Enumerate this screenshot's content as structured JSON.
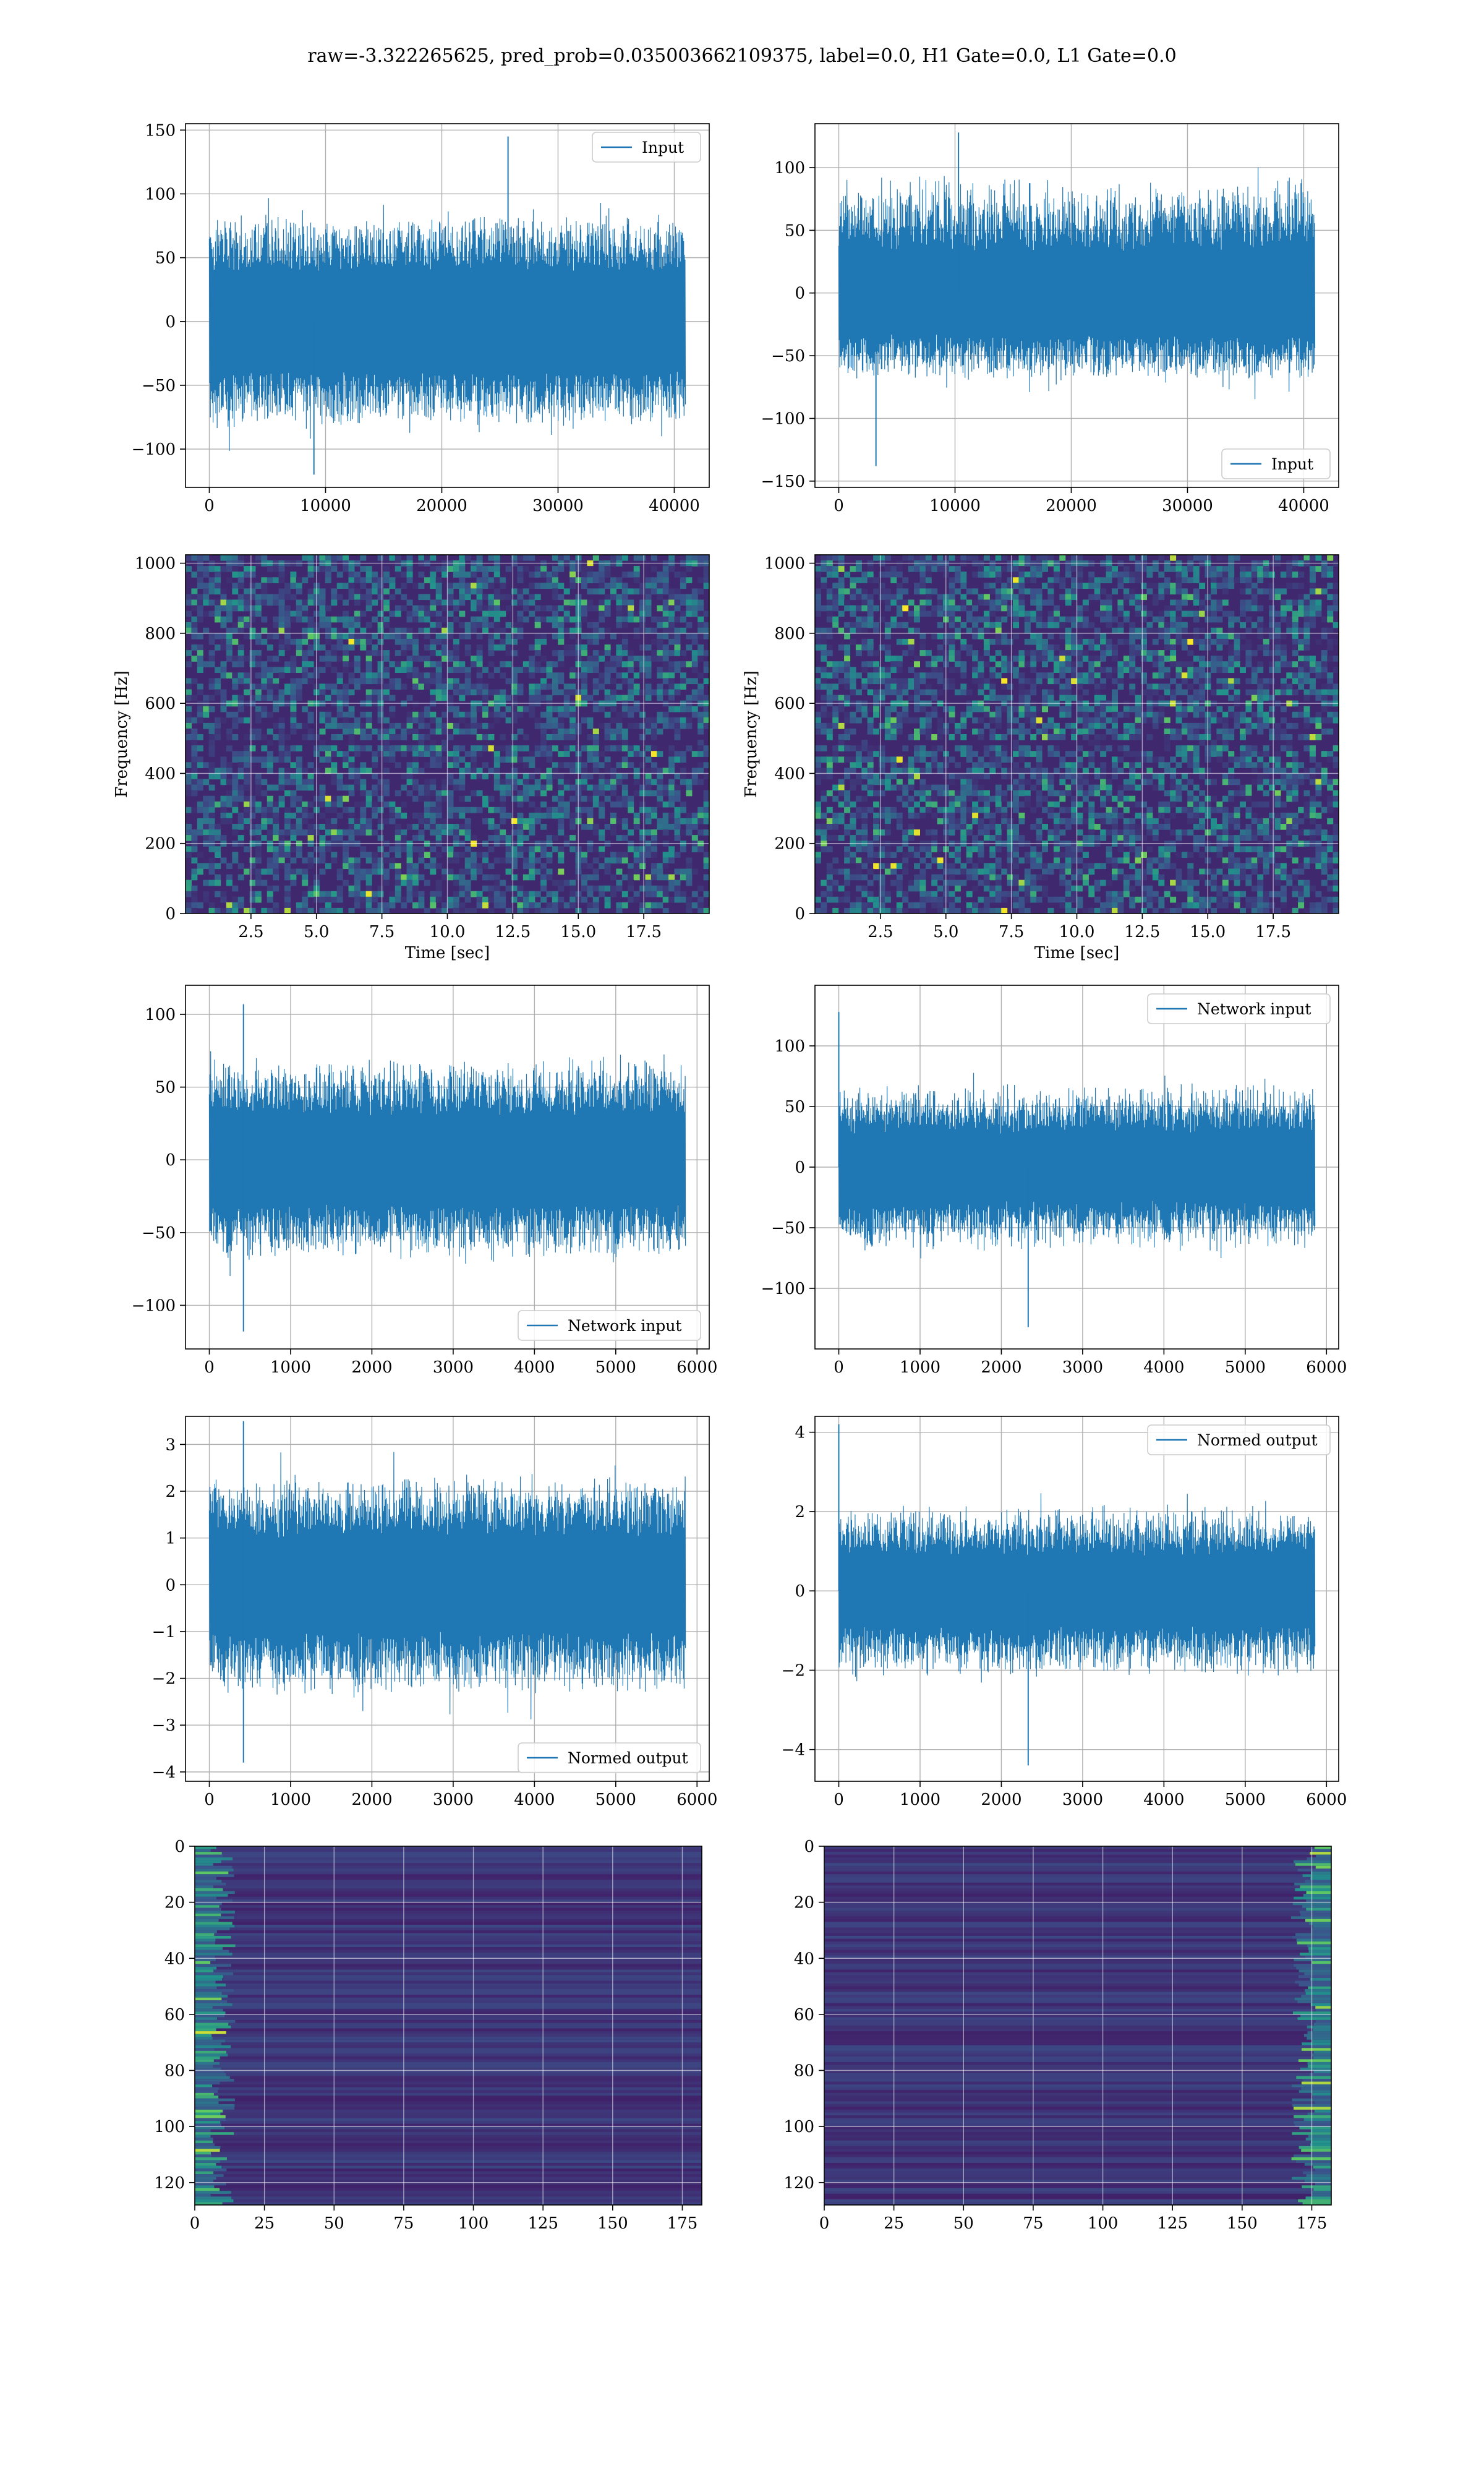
{
  "figure": {
    "suptitle": "raw=-3.322265625, pred_prob=0.035003662109375, label=0.0, H1 Gate=0.0, L1 Gate=0.0",
    "series_color": "#1f77b4"
  },
  "chart_data": [
    {
      "id": "input-h1",
      "type": "line",
      "title": "",
      "xlabel": "",
      "ylabel": "",
      "legend": {
        "label": "Input",
        "placement": "upper right"
      },
      "xlim": [
        -2048,
        43008
      ],
      "ylim": [
        -130,
        155
      ],
      "xticks": [
        0,
        10000,
        20000,
        30000,
        40000
      ],
      "yticks": [
        -100,
        -50,
        0,
        50,
        100,
        150
      ],
      "grid": true,
      "signal": {
        "n_samples": 40960,
        "envelope_min": [
          -85,
          -70
        ],
        "envelope_max": [
          70,
          85
        ],
        "peak_max": 145,
        "peak_max_x": 25700,
        "peak_min": -120,
        "peak_min_x": 9000
      }
    },
    {
      "id": "input-l1",
      "type": "line",
      "title": "",
      "xlabel": "",
      "ylabel": "",
      "legend": {
        "label": "Input",
        "placement": "lower right"
      },
      "xlim": [
        -2048,
        43008
      ],
      "ylim": [
        -155,
        135
      ],
      "xticks": [
        0,
        10000,
        20000,
        30000,
        40000
      ],
      "yticks": [
        -150,
        -100,
        -50,
        0,
        50,
        100
      ],
      "grid": true,
      "signal": {
        "n_samples": 40960,
        "envelope_min": [
          -70,
          -60
        ],
        "envelope_max": [
          60,
          95
        ],
        "peak_max": 128,
        "peak_max_x": 10300,
        "peak_min": -138,
        "peak_min_x": 3200
      }
    },
    {
      "id": "spectrogram-h1",
      "type": "heatmap",
      "title": "",
      "xlabel": "Time [sec]",
      "ylabel": "Frequency [Hz]",
      "xlim": [
        0,
        20
      ],
      "ylim": [
        0,
        1024
      ],
      "xticks": [
        2.5,
        5.0,
        7.5,
        10.0,
        12.5,
        15.0,
        17.5
      ],
      "yticks": [
        0,
        200,
        400,
        600,
        800,
        1000
      ],
      "colormap": "viridis",
      "grid": true,
      "dark_band_hz": [
        480,
        500
      ]
    },
    {
      "id": "spectrogram-l1",
      "type": "heatmap",
      "title": "",
      "xlabel": "Time [sec]",
      "ylabel": "Frequency [Hz]",
      "xlim": [
        0,
        20
      ],
      "ylim": [
        0,
        1024
      ],
      "xticks": [
        2.5,
        5.0,
        7.5,
        10.0,
        12.5,
        15.0,
        17.5
      ],
      "yticks": [
        0,
        200,
        400,
        600,
        800,
        1000
      ],
      "colormap": "viridis",
      "grid": true,
      "dark_band_hz": [
        480,
        500
      ]
    },
    {
      "id": "network-input-h1",
      "type": "line",
      "title": "",
      "xlabel": "",
      "ylabel": "",
      "legend": {
        "label": "Network input",
        "placement": "lower right"
      },
      "xlim": [
        -293,
        6150
      ],
      "ylim": [
        -130,
        120
      ],
      "xticks": [
        0,
        1000,
        2000,
        3000,
        4000,
        5000,
        6000
      ],
      "yticks": [
        -100,
        -50,
        0,
        50,
        100
      ],
      "grid": true,
      "signal": {
        "n_samples": 5858,
        "envelope_min": [
          -70,
          -55
        ],
        "envelope_max": [
          55,
          70
        ],
        "peak_max": 107,
        "peak_max_x": 420,
        "peak_min": -118,
        "peak_min_x": 420
      }
    },
    {
      "id": "network-input-l1",
      "type": "line",
      "title": "",
      "xlabel": "",
      "ylabel": "",
      "legend": {
        "label": "Network input",
        "placement": "upper right"
      },
      "xlim": [
        -293,
        6150
      ],
      "ylim": [
        -150,
        150
      ],
      "xticks": [
        0,
        1000,
        2000,
        3000,
        4000,
        5000,
        6000
      ],
      "yticks": [
        -100,
        -50,
        0,
        50,
        100
      ],
      "grid": true,
      "signal": {
        "n_samples": 5858,
        "envelope_min": [
          -70,
          -50
        ],
        "envelope_max": [
          50,
          70
        ],
        "peak_max": 128,
        "peak_max_x": 0,
        "peak_min": -132,
        "peak_min_x": 2330
      }
    },
    {
      "id": "normed-output-h1",
      "type": "line",
      "title": "",
      "xlabel": "",
      "ylabel": "",
      "legend": {
        "label": "Normed output",
        "placement": "lower right"
      },
      "xlim": [
        -293,
        6150
      ],
      "ylim": [
        -4.2,
        3.6
      ],
      "xticks": [
        0,
        1000,
        2000,
        3000,
        4000,
        5000,
        6000
      ],
      "yticks": [
        -4,
        -3,
        -2,
        -1,
        0,
        1,
        2,
        3
      ],
      "grid": true,
      "signal": {
        "n_samples": 5858,
        "envelope_min": [
          -2.4,
          -1.8
        ],
        "envelope_max": [
          1.8,
          2.4
        ],
        "peak_max": 3.5,
        "peak_max_x": 420,
        "peak_min": -3.8,
        "peak_min_x": 420
      }
    },
    {
      "id": "normed-output-l1",
      "type": "line",
      "title": "",
      "xlabel": "",
      "ylabel": "",
      "legend": {
        "label": "Normed output",
        "placement": "upper right"
      },
      "xlim": [
        -293,
        6150
      ],
      "ylim": [
        -4.8,
        4.4
      ],
      "xticks": [
        0,
        1000,
        2000,
        3000,
        4000,
        5000,
        6000
      ],
      "yticks": [
        -4,
        -2,
        0,
        2,
        4
      ],
      "grid": true,
      "signal": {
        "n_samples": 5858,
        "envelope_min": [
          -2.2,
          -1.6
        ],
        "envelope_max": [
          1.6,
          2.2
        ],
        "peak_max": 4.2,
        "peak_max_x": 0,
        "peak_min": -4.4,
        "peak_min_x": 2330
      }
    },
    {
      "id": "features-h1",
      "type": "heatmap",
      "title": "",
      "xlabel": "",
      "ylabel": "",
      "xlim": [
        0,
        182
      ],
      "ylim": [
        128,
        0
      ],
      "xticks": [
        0,
        25,
        50,
        75,
        100,
        125,
        150,
        175
      ],
      "yticks": [
        0,
        20,
        40,
        60,
        80,
        100,
        120
      ],
      "colormap": "viridis",
      "grid": true,
      "bright_edge": "left"
    },
    {
      "id": "features-l1",
      "type": "heatmap",
      "title": "",
      "xlabel": "",
      "ylabel": "",
      "xlim": [
        0,
        182
      ],
      "ylim": [
        128,
        0
      ],
      "xticks": [
        0,
        25,
        50,
        75,
        100,
        125,
        150,
        175
      ],
      "yticks": [
        0,
        20,
        40,
        60,
        80,
        100,
        120
      ],
      "colormap": "viridis",
      "grid": true,
      "bright_edge": "right"
    }
  ]
}
